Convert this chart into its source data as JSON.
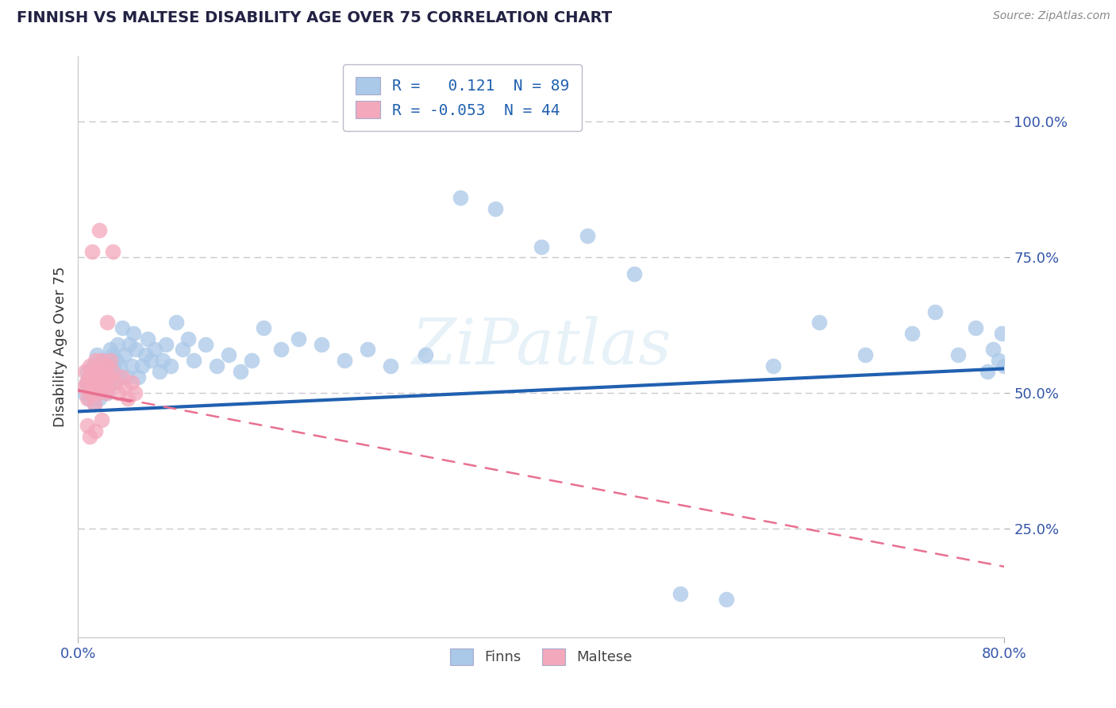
{
  "title": "FINNISH VS MALTESE DISABILITY AGE OVER 75 CORRELATION CHART",
  "source": "Source: ZipAtlas.com",
  "ylabel": "Disability Age Over 75",
  "xlim": [
    0.0,
    0.8
  ],
  "ylim": [
    0.05,
    1.12
  ],
  "yticks": [
    0.25,
    0.5,
    0.75,
    1.0
  ],
  "yticklabels": [
    "25.0%",
    "50.0%",
    "75.0%",
    "100.0%"
  ],
  "finns_R": 0.121,
  "finns_N": 89,
  "maltese_R": -0.053,
  "maltese_N": 44,
  "finns_color": "#aac8e8",
  "maltese_color": "#f4a8bc",
  "finns_line_color": "#2060b0",
  "maltese_line_color": "#e87090",
  "background_color": "#ffffff",
  "grid_color": "#c8c8d0",
  "title_color": "#222244",
  "legend_text_color": "#2060b0",
  "watermark": "ZIPat las",
  "finns_x": [
    0.005,
    0.007,
    0.008,
    0.009,
    0.01,
    0.01,
    0.011,
    0.012,
    0.013,
    0.014,
    0.015,
    0.015,
    0.016,
    0.017,
    0.018,
    0.018,
    0.019,
    0.02,
    0.02,
    0.021,
    0.022,
    0.023,
    0.024,
    0.025,
    0.025,
    0.026,
    0.027,
    0.028,
    0.029,
    0.03,
    0.031,
    0.032,
    0.033,
    0.034,
    0.035,
    0.036,
    0.038,
    0.04,
    0.042,
    0.044,
    0.046,
    0.048,
    0.05,
    0.052,
    0.055,
    0.058,
    0.06,
    0.063,
    0.066,
    0.07,
    0.073,
    0.076,
    0.08,
    0.085,
    0.09,
    0.095,
    0.1,
    0.11,
    0.12,
    0.13,
    0.14,
    0.15,
    0.16,
    0.175,
    0.19,
    0.21,
    0.23,
    0.25,
    0.27,
    0.3,
    0.33,
    0.36,
    0.4,
    0.44,
    0.48,
    0.52,
    0.56,
    0.6,
    0.64,
    0.68,
    0.72,
    0.74,
    0.76,
    0.775,
    0.785,
    0.79,
    0.795,
    0.798,
    0.8
  ],
  "finns_y": [
    0.5,
    0.52,
    0.54,
    0.49,
    0.51,
    0.53,
    0.5,
    0.52,
    0.55,
    0.48,
    0.51,
    0.54,
    0.57,
    0.5,
    0.52,
    0.49,
    0.51,
    0.53,
    0.56,
    0.52,
    0.55,
    0.51,
    0.53,
    0.56,
    0.5,
    0.52,
    0.54,
    0.58,
    0.55,
    0.57,
    0.52,
    0.54,
    0.56,
    0.59,
    0.53,
    0.55,
    0.62,
    0.57,
    0.53,
    0.59,
    0.55,
    0.61,
    0.58,
    0.53,
    0.55,
    0.57,
    0.6,
    0.56,
    0.58,
    0.54,
    0.56,
    0.59,
    0.55,
    0.63,
    0.58,
    0.6,
    0.56,
    0.59,
    0.55,
    0.57,
    0.54,
    0.56,
    0.62,
    0.58,
    0.6,
    0.59,
    0.56,
    0.58,
    0.55,
    0.57,
    0.86,
    0.84,
    0.77,
    0.79,
    0.72,
    0.13,
    0.12,
    0.55,
    0.63,
    0.57,
    0.61,
    0.65,
    0.57,
    0.62,
    0.54,
    0.58,
    0.56,
    0.61,
    0.55
  ],
  "maltese_x": [
    0.005,
    0.006,
    0.007,
    0.008,
    0.009,
    0.01,
    0.01,
    0.011,
    0.012,
    0.013,
    0.014,
    0.015,
    0.015,
    0.016,
    0.017,
    0.018,
    0.019,
    0.02,
    0.02,
    0.021,
    0.022,
    0.023,
    0.024,
    0.025,
    0.025,
    0.026,
    0.027,
    0.028,
    0.03,
    0.032,
    0.035,
    0.038,
    0.04,
    0.043,
    0.046,
    0.049,
    0.025,
    0.03,
    0.018,
    0.012,
    0.008,
    0.01,
    0.015,
    0.02
  ],
  "maltese_y": [
    0.51,
    0.54,
    0.52,
    0.49,
    0.53,
    0.55,
    0.52,
    0.5,
    0.54,
    0.51,
    0.48,
    0.53,
    0.56,
    0.5,
    0.52,
    0.54,
    0.51,
    0.53,
    0.56,
    0.51,
    0.54,
    0.52,
    0.5,
    0.53,
    0.55,
    0.51,
    0.53,
    0.56,
    0.54,
    0.52,
    0.5,
    0.53,
    0.51,
    0.49,
    0.52,
    0.5,
    0.63,
    0.76,
    0.8,
    0.76,
    0.44,
    0.42,
    0.43,
    0.45
  ],
  "finns_line_x": [
    0.0,
    0.8
  ],
  "finns_line_y": [
    0.466,
    0.545
  ],
  "maltese_line_x": [
    0.0,
    0.8
  ],
  "maltese_line_y": [
    0.505,
    0.18
  ]
}
